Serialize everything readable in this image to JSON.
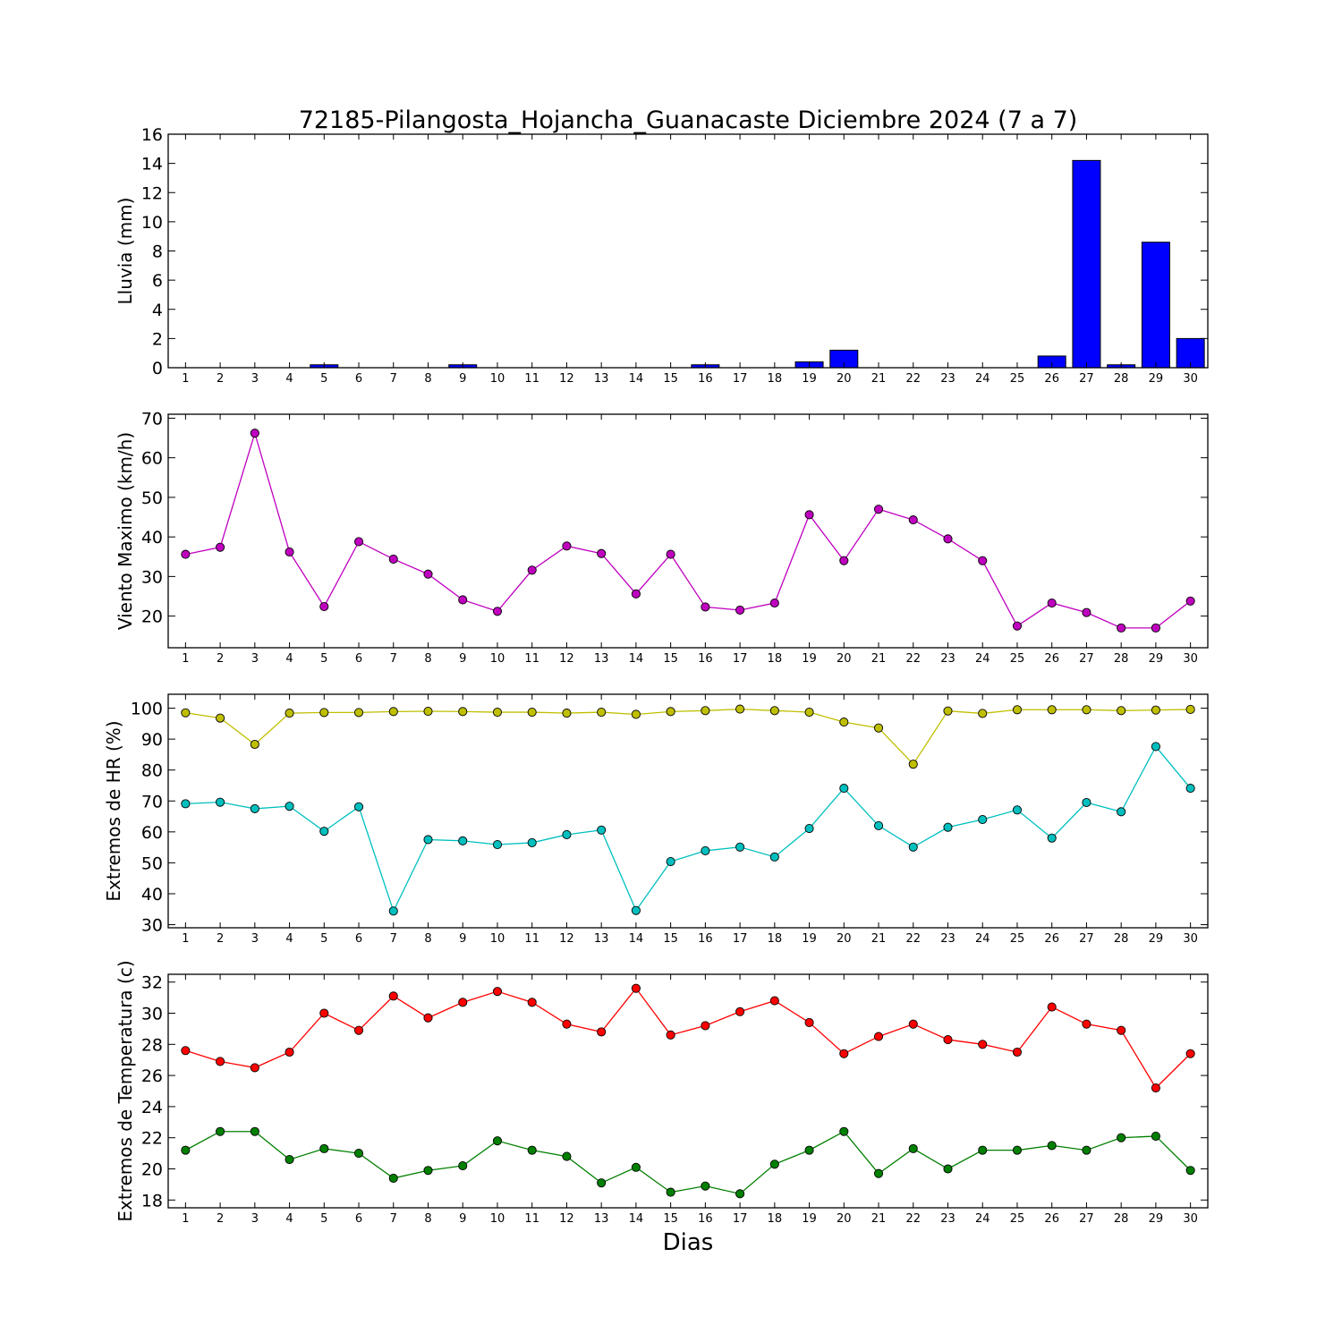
{
  "title": "72185-Pilangosta_Hojancha_Guanacaste Diciembre 2024  (7 a 7)",
  "xlabel": "Dias",
  "chart_data": [
    {
      "type": "bar",
      "ylabel": "Lluvia (mm)",
      "ylim": [
        0,
        16
      ],
      "yticks": [
        0,
        2,
        4,
        6,
        8,
        10,
        12,
        14,
        16
      ],
      "color": "#0000ff",
      "categories": [
        1,
        2,
        3,
        4,
        5,
        6,
        7,
        8,
        9,
        10,
        11,
        12,
        13,
        14,
        15,
        16,
        17,
        18,
        19,
        20,
        21,
        22,
        23,
        24,
        25,
        26,
        27,
        28,
        29,
        30
      ],
      "series": [
        {
          "color": "#0000ff",
          "values": [
            0,
            0,
            0,
            0,
            0.2,
            0,
            0,
            0,
            0.2,
            0,
            0,
            0,
            0,
            0,
            0,
            0.2,
            0,
            0,
            0.4,
            1.2,
            0,
            0,
            0,
            0,
            0,
            0.8,
            14.2,
            0.2,
            8.6,
            2.0
          ]
        }
      ]
    },
    {
      "type": "line",
      "ylabel": "Viento Maximo (km/h)",
      "ylim": [
        12,
        71
      ],
      "yticks": [
        20,
        30,
        40,
        50,
        60,
        70
      ],
      "x": [
        1,
        2,
        3,
        4,
        5,
        6,
        7,
        8,
        9,
        10,
        11,
        12,
        13,
        14,
        15,
        16,
        17,
        18,
        19,
        20,
        21,
        22,
        23,
        24,
        25,
        26,
        27,
        28,
        29,
        30
      ],
      "series": [
        {
          "color": "#bf00bf",
          "values": [
            35.6,
            37.4,
            66.2,
            36.2,
            22.4,
            38.8,
            34.4,
            30.6,
            24.1,
            21.2,
            31.6,
            37.7,
            35.8,
            25.6,
            35.6,
            22.3,
            21.5,
            23.3,
            45.6,
            34.0,
            47.0,
            44.3,
            39.5,
            34.0,
            17.5,
            23.3,
            20.9,
            17.0,
            17.0,
            23.8
          ]
        }
      ]
    },
    {
      "type": "line",
      "ylabel": "Extremos de HR (%)",
      "ylim": [
        29,
        104.5
      ],
      "yticks": [
        30,
        40,
        50,
        60,
        70,
        80,
        90,
        100
      ],
      "x": [
        1,
        2,
        3,
        4,
        5,
        6,
        7,
        8,
        9,
        10,
        11,
        12,
        13,
        14,
        15,
        16,
        17,
        18,
        19,
        20,
        21,
        22,
        23,
        24,
        25,
        26,
        27,
        28,
        29,
        30
      ],
      "series": [
        {
          "color": "#bfbf00",
          "values": [
            98.5,
            96.8,
            88.3,
            98.4,
            98.6,
            98.6,
            98.9,
            99.0,
            98.9,
            98.7,
            98.7,
            98.4,
            98.7,
            98.0,
            98.9,
            99.2,
            99.7,
            99.2,
            98.7,
            95.5,
            93.6,
            81.9,
            99.1,
            98.3,
            99.5,
            99.5,
            99.5,
            99.2,
            99.4,
            99.6
          ]
        },
        {
          "color": "#00bfbf",
          "values": [
            69.1,
            69.6,
            67.5,
            68.3,
            60.2,
            68.1,
            34.4,
            57.5,
            57.1,
            55.9,
            56.5,
            59.1,
            60.6,
            34.6,
            50.4,
            53.9,
            55.1,
            51.9,
            61.1,
            74.1,
            62.0,
            55.1,
            61.5,
            64.0,
            67.1,
            58.0,
            69.5,
            66.5,
            87.6,
            74.1
          ]
        }
      ]
    },
    {
      "type": "line",
      "ylabel": "Extremos de Temperatura (c)",
      "ylim": [
        17.5,
        32.5
      ],
      "yticks": [
        18,
        20,
        22,
        24,
        26,
        28,
        30,
        32
      ],
      "x": [
        1,
        2,
        3,
        4,
        5,
        6,
        7,
        8,
        9,
        10,
        11,
        12,
        13,
        14,
        15,
        16,
        17,
        18,
        19,
        20,
        21,
        22,
        23,
        24,
        25,
        26,
        27,
        28,
        29,
        30
      ],
      "series": [
        {
          "color": "#ff0000",
          "values": [
            27.6,
            26.9,
            26.5,
            27.5,
            30.0,
            28.9,
            31.1,
            29.7,
            30.7,
            31.4,
            30.7,
            29.3,
            28.8,
            31.6,
            28.6,
            29.2,
            30.1,
            30.8,
            29.4,
            27.4,
            28.5,
            29.3,
            28.3,
            28.0,
            27.5,
            30.4,
            29.3,
            28.9,
            25.2,
            27.4
          ]
        },
        {
          "color": "#008000",
          "values": [
            21.2,
            22.4,
            22.4,
            20.6,
            21.3,
            21.0,
            19.4,
            19.9,
            20.2,
            21.8,
            21.2,
            20.8,
            19.1,
            20.1,
            18.5,
            18.9,
            18.4,
            20.3,
            21.2,
            22.4,
            19.7,
            21.3,
            20.0,
            21.2,
            21.2,
            21.5,
            21.2,
            22.0,
            22.1,
            19.9
          ]
        }
      ]
    }
  ]
}
